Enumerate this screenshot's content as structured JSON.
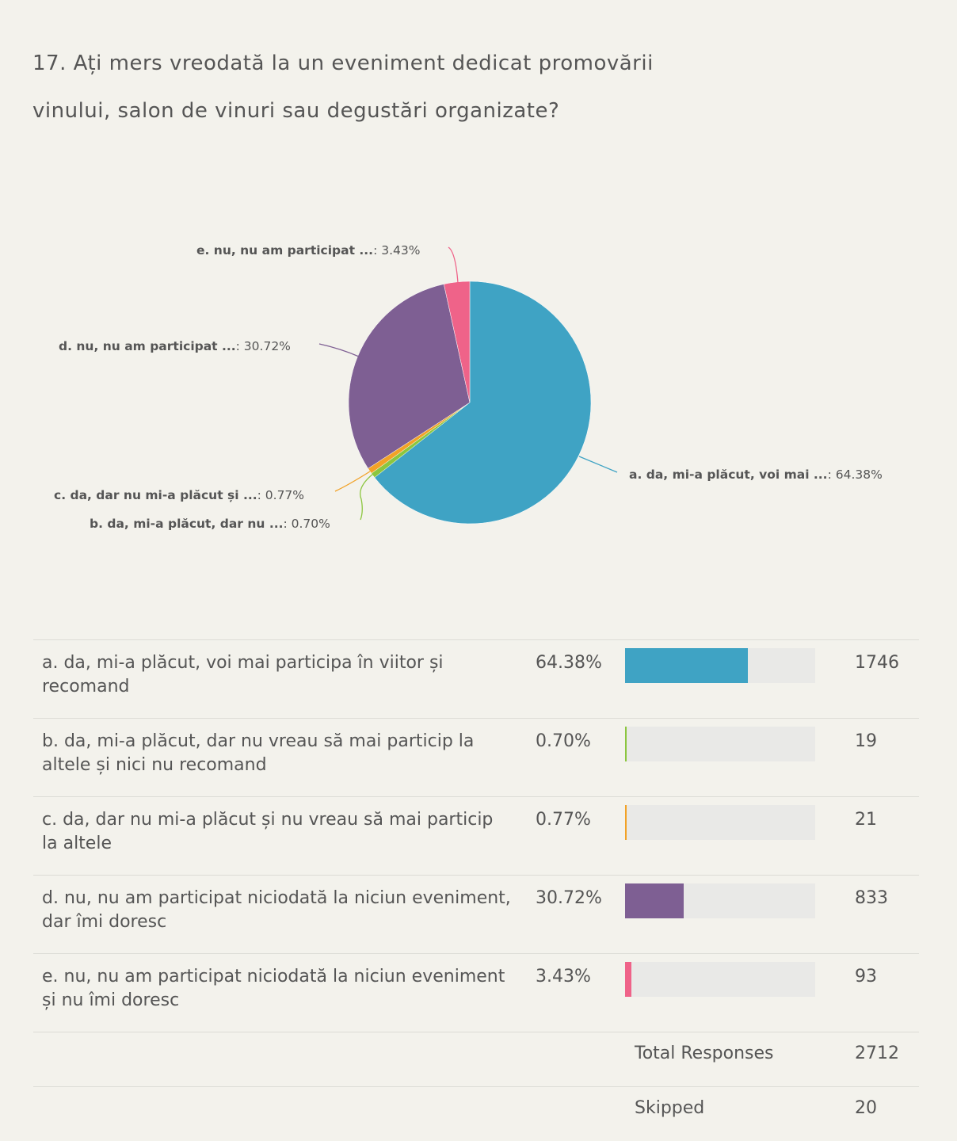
{
  "question": {
    "line1": "17. Ați mers vreodată la un eveniment dedicat promovării",
    "line2": "vinului, salon de vinuri sau degustări organizate?"
  },
  "chart_data": {
    "type": "pie",
    "categories": [
      "a. da, mi-a plăcut, voi mai participa în viitor și recomand",
      "b. da, mi-a plăcut, dar nu vreau să mai particip la altele și nici nu recomand",
      "c. da, dar nu mi-a plăcut și nu vreau să mai particip la altele",
      "d. nu, nu am participat niciodată la niciun eveniment, dar îmi doresc",
      "e. nu, nu am participat niciodată la niciun eveniment și nu îmi doresc"
    ],
    "short_labels": [
      "a. da, mi-a plăcut, voi mai ...",
      "b. da, mi-a plăcut, dar nu ...",
      "c. da, dar nu mi-a plăcut și ...",
      "d. nu, nu am participat ...",
      "e. nu, nu am participat ..."
    ],
    "values": [
      64.38,
      0.7,
      0.77,
      30.72,
      3.43
    ],
    "value_labels": [
      ": 64.38%",
      ": 0.70%",
      ": 0.77%",
      ": 30.72%",
      ": 3.43%"
    ],
    "colors": [
      "#3fa3c4",
      "#8cc63f",
      "#f2a227",
      "#7e5f93",
      "#ef6389"
    ]
  },
  "table": {
    "rows": [
      {
        "line1": "a. da, mi-a plăcut, voi mai participa în viitor și",
        "line2": "recomand",
        "pct": "64.38%",
        "fraction": 0.6438,
        "count": "1746",
        "color": "#3fa3c4"
      },
      {
        "line1": "b. da, mi-a plăcut, dar nu vreau să mai particip la",
        "line2": "altele și nici nu recomand",
        "pct": "0.70%",
        "fraction": 0.007,
        "count": "19",
        "color": "#8cc63f"
      },
      {
        "line1": "c. da, dar nu mi-a plăcut și nu vreau să mai particip",
        "line2": "la altele",
        "pct": "0.77%",
        "fraction": 0.0077,
        "count": "21",
        "color": "#f2a227"
      },
      {
        "line1": "d. nu, nu am participat niciodată la niciun eveniment,",
        "line2": "dar îmi doresc",
        "pct": "30.72%",
        "fraction": 0.3072,
        "count": "833",
        "color": "#7e5f93"
      },
      {
        "line1": "e. nu, nu am participat niciodată la niciun eveniment",
        "line2": "și nu îmi doresc",
        "pct": "3.43%",
        "fraction": 0.0343,
        "count": "93",
        "color": "#ef6389"
      }
    ],
    "total_label": "Total Responses",
    "total_value": "2712",
    "skipped_label": "Skipped",
    "skipped_value": "20"
  }
}
